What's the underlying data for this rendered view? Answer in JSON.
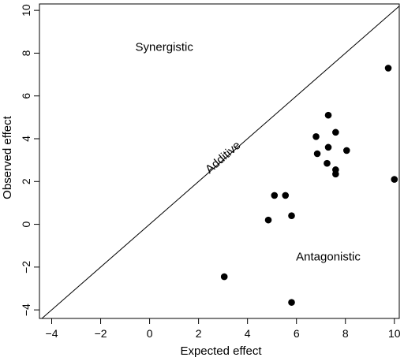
{
  "chart_data": {
    "type": "scatter",
    "xlabel": "Expected effect",
    "ylabel": "Observed effect",
    "xlim": [
      -4.5,
      10.2
    ],
    "ylim": [
      -4.4,
      10.3
    ],
    "x_ticks": [
      "-4",
      "-2",
      "0",
      "2",
      "4",
      "6",
      "8",
      "10"
    ],
    "y_ticks": [
      "-4",
      "-2",
      "0",
      "2",
      "4",
      "6",
      "8",
      "10"
    ],
    "grid": false,
    "reference_line": {
      "slope": 1,
      "intercept": 0
    },
    "annotations": [
      {
        "text": "Synergistic",
        "x": 0.6,
        "y": 8.1
      },
      {
        "text": "Additive",
        "x": 3.1,
        "y": 3.0,
        "rotation": "along-diagonal"
      },
      {
        "text": "Antagonistic",
        "x": 7.3,
        "y": -1.7
      }
    ],
    "points": [
      {
        "x": 9.75,
        "y": 7.3
      },
      {
        "x": 7.3,
        "y": 5.1
      },
      {
        "x": 7.6,
        "y": 4.3
      },
      {
        "x": 6.8,
        "y": 4.1
      },
      {
        "x": 7.3,
        "y": 3.6
      },
      {
        "x": 6.85,
        "y": 3.3
      },
      {
        "x": 8.05,
        "y": 3.45
      },
      {
        "x": 7.25,
        "y": 2.85
      },
      {
        "x": 7.6,
        "y": 2.55
      },
      {
        "x": 7.6,
        "y": 2.35
      },
      {
        "x": 10.0,
        "y": 2.1
      },
      {
        "x": 5.1,
        "y": 1.35
      },
      {
        "x": 5.55,
        "y": 1.35
      },
      {
        "x": 5.8,
        "y": 0.4
      },
      {
        "x": 4.85,
        "y": 0.2
      },
      {
        "x": 3.05,
        "y": -2.45
      },
      {
        "x": 5.8,
        "y": -3.65
      }
    ]
  }
}
